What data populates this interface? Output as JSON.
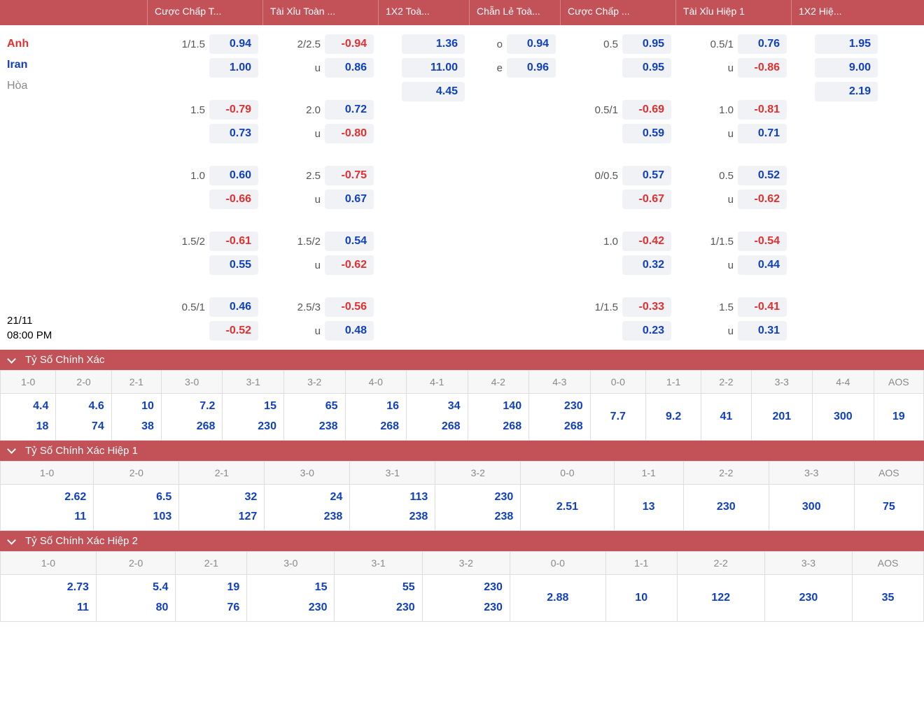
{
  "colors": {
    "header_bg": "#c25257",
    "header_text": "#ffffff",
    "val_blue": "#1040c0",
    "val_red": "#e03030",
    "team_grey": "#888888",
    "cell_bg": "#f0f2f5",
    "border": "#dddddd"
  },
  "headers": {
    "handicap_ft": "Cược Chấp T...",
    "ou_ft": "Tài Xỉu Toàn ...",
    "x12_ft": "1X2 Toà...",
    "oe_ft": "Chẵn Lẻ Toà...",
    "handicap_ht": "Cược Chấp ...",
    "ou_ht": "Tài Xỉu Hiệp 1",
    "x12_ht": "1X2 Hiệ..."
  },
  "match": {
    "team1": "Anh",
    "team2": "Iran",
    "draw": "Hòa",
    "date": "21/11",
    "time": "08:00 PM"
  },
  "ft": {
    "handicap": [
      {
        "label": "1/1.5",
        "v1": "0.94",
        "c1": "blue",
        "v2": "1.00",
        "c2": "blue"
      },
      {
        "label": "1.5",
        "v1": "-0.79",
        "c1": "red",
        "v2": "0.73",
        "c2": "blue"
      },
      {
        "label": "1.0",
        "v1": "0.60",
        "c1": "blue",
        "v2": "-0.66",
        "c2": "red"
      },
      {
        "label": "1.5/2",
        "v1": "-0.61",
        "c1": "red",
        "v2": "0.55",
        "c2": "blue"
      },
      {
        "label": "0.5/1",
        "v1": "0.46",
        "c1": "blue",
        "v2": "-0.52",
        "c2": "red"
      }
    ],
    "ou": [
      {
        "l1": "2/2.5",
        "v1": "-0.94",
        "c1": "red",
        "l2": "u",
        "v2": "0.86",
        "c2": "blue"
      },
      {
        "l1": "2.0",
        "v1": "0.72",
        "c1": "blue",
        "l2": "u",
        "v2": "-0.80",
        "c2": "red"
      },
      {
        "l1": "2.5",
        "v1": "-0.75",
        "c1": "red",
        "l2": "u",
        "v2": "0.67",
        "c2": "blue"
      },
      {
        "l1": "1.5/2",
        "v1": "0.54",
        "c1": "blue",
        "l2": "u",
        "v2": "-0.62",
        "c2": "red"
      },
      {
        "l1": "2.5/3",
        "v1": "-0.56",
        "c1": "red",
        "l2": "u",
        "v2": "0.48",
        "c2": "blue"
      }
    ],
    "x12": {
      "v1": "1.36",
      "v2": "11.00",
      "vx": "4.45"
    },
    "oe": {
      "lo": "o",
      "vo": "0.94",
      "le": "e",
      "ve": "0.96"
    }
  },
  "ht": {
    "handicap": [
      {
        "label": "0.5",
        "v1": "0.95",
        "c1": "blue",
        "v2": "0.95",
        "c2": "blue"
      },
      {
        "label": "0.5/1",
        "v1": "-0.69",
        "c1": "red",
        "v2": "0.59",
        "c2": "blue"
      },
      {
        "label": "0/0.5",
        "v1": "0.57",
        "c1": "blue",
        "v2": "-0.67",
        "c2": "red"
      },
      {
        "label": "1.0",
        "v1": "-0.42",
        "c1": "red",
        "v2": "0.32",
        "c2": "blue"
      },
      {
        "label": "1/1.5",
        "v1": "-0.33",
        "c1": "red",
        "v2": "0.23",
        "c2": "blue"
      }
    ],
    "ou": [
      {
        "l1": "0.5/1",
        "v1": "0.76",
        "c1": "blue",
        "l2": "u",
        "v2": "-0.86",
        "c2": "red"
      },
      {
        "l1": "1.0",
        "v1": "-0.81",
        "c1": "red",
        "l2": "u",
        "v2": "0.71",
        "c2": "blue"
      },
      {
        "l1": "0.5",
        "v1": "0.52",
        "c1": "blue",
        "l2": "u",
        "v2": "-0.62",
        "c2": "red"
      },
      {
        "l1": "1/1.5",
        "v1": "-0.54",
        "c1": "red",
        "l2": "u",
        "v2": "0.44",
        "c2": "blue"
      },
      {
        "l1": "1.5",
        "v1": "-0.41",
        "c1": "red",
        "l2": "u",
        "v2": "0.31",
        "c2": "blue"
      }
    ],
    "x12": {
      "v1": "1.95",
      "v2": "9.00",
      "vx": "2.19"
    }
  },
  "sections": {
    "cs": "Tỷ Số Chính Xác",
    "cs_h1": "Tỷ Số Chính Xác Hiệp 1",
    "cs_h2": "Tỷ Số Chính Xác Hiệp 2"
  },
  "cs": {
    "headers": [
      "1-0",
      "2-0",
      "2-1",
      "3-0",
      "3-1",
      "3-2",
      "4-0",
      "4-1",
      "4-2",
      "4-3",
      "0-0",
      "1-1",
      "2-2",
      "3-3",
      "4-4",
      "AOS"
    ],
    "rows": [
      {
        "top": "4.4",
        "bot": "18"
      },
      {
        "top": "4.6",
        "bot": "74"
      },
      {
        "top": "10",
        "bot": "38"
      },
      {
        "top": "7.2",
        "bot": "268"
      },
      {
        "top": "15",
        "bot": "230"
      },
      {
        "top": "65",
        "bot": "238"
      },
      {
        "top": "16",
        "bot": "268"
      },
      {
        "top": "34",
        "bot": "268"
      },
      {
        "top": "140",
        "bot": "268"
      },
      {
        "top": "230",
        "bot": "268"
      },
      {
        "single": "7.7"
      },
      {
        "single": "9.2"
      },
      {
        "single": "41"
      },
      {
        "single": "201"
      },
      {
        "single": "300"
      },
      {
        "single": "19"
      }
    ]
  },
  "cs_h1": {
    "headers": [
      "1-0",
      "2-0",
      "2-1",
      "3-0",
      "3-1",
      "3-2",
      "0-0",
      "1-1",
      "2-2",
      "3-3",
      "AOS"
    ],
    "rows": [
      {
        "top": "2.62",
        "bot": "11"
      },
      {
        "top": "6.5",
        "bot": "103"
      },
      {
        "top": "32",
        "bot": "127"
      },
      {
        "top": "24",
        "bot": "238"
      },
      {
        "top": "113",
        "bot": "238"
      },
      {
        "top": "230",
        "bot": "238"
      },
      {
        "single": "2.51"
      },
      {
        "single": "13"
      },
      {
        "single": "230"
      },
      {
        "single": "300"
      },
      {
        "single": "75"
      }
    ]
  },
  "cs_h2": {
    "headers": [
      "1-0",
      "2-0",
      "2-1",
      "3-0",
      "3-1",
      "3-2",
      "0-0",
      "1-1",
      "2-2",
      "3-3",
      "AOS"
    ],
    "rows": [
      {
        "top": "2.73",
        "bot": "11"
      },
      {
        "top": "5.4",
        "bot": "80"
      },
      {
        "top": "19",
        "bot": "76"
      },
      {
        "top": "15",
        "bot": "230"
      },
      {
        "top": "55",
        "bot": "230"
      },
      {
        "top": "230",
        "bot": "230"
      },
      {
        "single": "2.88"
      },
      {
        "single": "10"
      },
      {
        "single": "122"
      },
      {
        "single": "230"
      },
      {
        "single": "35"
      }
    ]
  }
}
